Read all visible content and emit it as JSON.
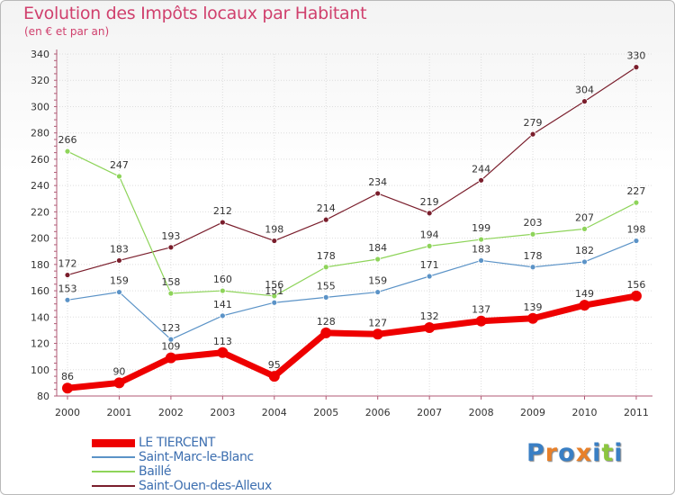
{
  "title": "Evolution des Impôts locaux par Habitant",
  "subtitle": "(en € et par an)",
  "logo": {
    "text": "Proxiti",
    "letter_colors": [
      "#3a7fc4",
      "#e8802a",
      "#3a7fc4",
      "#e8802a",
      "#3a7fc4",
      "#8cc63f",
      "#3a7fc4"
    ]
  },
  "colors": {
    "axis": "#b05a75",
    "grid": "#dddddd",
    "tick_label": "#333333",
    "value_label": "#333333",
    "legend_text": "#3d6fb0"
  },
  "chart_data": {
    "type": "line",
    "title": "Evolution des Impôts locaux par Habitant",
    "subtitle": "(en € et par an)",
    "xlabel": "",
    "ylabel": "",
    "x": [
      "2000",
      "2001",
      "2002",
      "2003",
      "2004",
      "2005",
      "2006",
      "2007",
      "2008",
      "2009",
      "2010",
      "2011"
    ],
    "ylim": [
      80,
      340
    ],
    "yticks": [
      80,
      100,
      120,
      140,
      160,
      180,
      200,
      220,
      240,
      260,
      280,
      300,
      320,
      340
    ],
    "grid": true,
    "legend_position": "bottom-left",
    "series": [
      {
        "name": "Saint-Ouen-des-Alleux",
        "color": "#7a1e2c",
        "width": 1.2,
        "values": [
          172,
          183,
          193,
          212,
          198,
          214,
          234,
          219,
          244,
          279,
          304,
          330
        ]
      },
      {
        "name": "Baillé",
        "color": "#8ed45a",
        "width": 1.2,
        "values": [
          266,
          247,
          158,
          160,
          156,
          178,
          184,
          194,
          199,
          203,
          207,
          227
        ]
      },
      {
        "name": "Saint-Marc-le-Blanc",
        "color": "#5b93c7",
        "width": 1.2,
        "values": [
          153,
          159,
          123,
          141,
          151,
          155,
          159,
          171,
          183,
          178,
          182,
          198
        ]
      },
      {
        "name": "LE TIERCENT",
        "color": "#ee0000",
        "width": 7,
        "values": [
          86,
          90,
          109,
          113,
          95,
          128,
          127,
          132,
          137,
          139,
          149,
          156
        ]
      }
    ],
    "legend_order": [
      "LE TIERCENT",
      "Saint-Marc-le-Blanc",
      "Baillé",
      "Saint-Ouen-des-Alleux"
    ]
  }
}
